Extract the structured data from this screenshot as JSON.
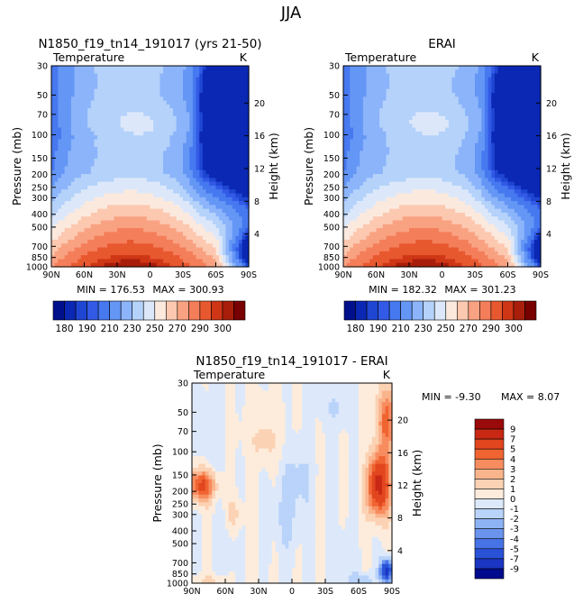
{
  "page_title": "JJA",
  "chart_data": [
    {
      "type": "heatmap",
      "title": "N1850_f19_tn14_191017 (yrs 21-50)",
      "variable": "Temperature",
      "units": "K",
      "ylabel": "Pressure (mb)",
      "y2label": "Height (km)",
      "xticks": [
        "90N",
        "60N",
        "30N",
        "0",
        "30S",
        "60S",
        "90S"
      ],
      "yticks": [
        "30",
        "50",
        "70",
        "100",
        "150",
        "200",
        "250",
        "300",
        "400",
        "500",
        "700",
        "850",
        "1000"
      ],
      "y2ticks": [
        "20",
        "16",
        "12",
        "8",
        "4"
      ],
      "min_text": "MIN = 176.53",
      "max_text": "MAX = 300.93",
      "min": 176.53,
      "max": 300.93,
      "colorbar_labels": [
        "180",
        "190",
        "210",
        "230",
        "250",
        "270",
        "290",
        "300"
      ],
      "colorbar_levels": [
        175,
        180,
        185,
        190,
        200,
        210,
        220,
        230,
        240,
        250,
        260,
        270,
        280,
        290,
        295,
        300
      ],
      "colorbar_colors": [
        "#000f8c",
        "#0a28b4",
        "#1e46d2",
        "#325ae6",
        "#4678f0",
        "#6496f5",
        "#8cb4fa",
        "#b4d2fa",
        "#dce8fa",
        "#fbe9de",
        "#fcc8b0",
        "#f9a282",
        "#f47e5a",
        "#e8582f",
        "#cf3616",
        "#a81e0a",
        "#780000"
      ]
    },
    {
      "type": "heatmap",
      "title": "ERAI",
      "variable": "Temperature",
      "units": "K",
      "ylabel": "Pressure (mb)",
      "y2label": "Height (km)",
      "xticks": [
        "90N",
        "60N",
        "30N",
        "0",
        "30S",
        "60S",
        "90S"
      ],
      "yticks": [
        "30",
        "50",
        "70",
        "100",
        "150",
        "200",
        "250",
        "300",
        "400",
        "500",
        "700",
        "850",
        "1000"
      ],
      "y2ticks": [
        "20",
        "16",
        "12",
        "8",
        "4"
      ],
      "min_text": "MIN = 182.32",
      "max_text": "MAX = 301.23",
      "min": 182.32,
      "max": 301.23,
      "colorbar_labels": [
        "180",
        "190",
        "210",
        "230",
        "250",
        "270",
        "290",
        "300"
      ]
    },
    {
      "type": "heatmap",
      "title": "N1850_f19_tn14_191017 - ERAI",
      "variable": "Temperature",
      "units": "K",
      "ylabel": "Pressure (mb)",
      "y2label": "Height (km)",
      "xticks": [
        "90N",
        "60N",
        "30N",
        "0",
        "30S",
        "60S",
        "90S"
      ],
      "yticks": [
        "30",
        "50",
        "70",
        "100",
        "150",
        "200",
        "250",
        "300",
        "400",
        "500",
        "700",
        "850",
        "1000"
      ],
      "y2ticks": [
        "20",
        "16",
        "12",
        "8",
        "4"
      ],
      "min_text": "MIN =   -9.30",
      "max_text": "MAX =    8.07",
      "min": -9.3,
      "max": 8.07,
      "colorbar_labels": [
        "9",
        "7",
        "5",
        "4",
        "3",
        "2",
        "1",
        "0",
        "-1",
        "-2",
        "-3",
        "-4",
        "-5",
        "-7",
        "-9"
      ],
      "colorbar_colors": [
        "#9b0a0a",
        "#c82814",
        "#e1461e",
        "#f06432",
        "#f78c5f",
        "#fab48c",
        "#fcd2b4",
        "#fdecdc",
        "#dde9fa",
        "#b9d3fa",
        "#8eb3f5",
        "#6a93ee",
        "#4673e6",
        "#2a52d7",
        "#1a36c2",
        "#000a8c"
      ]
    }
  ]
}
